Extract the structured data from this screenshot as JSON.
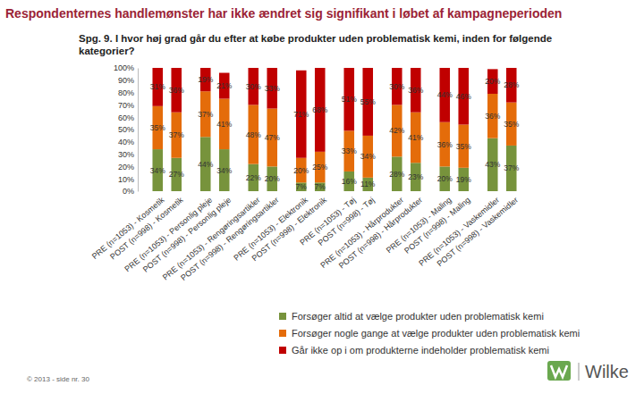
{
  "chart_data": {
    "type": "bar",
    "stacked": true,
    "data_labels": true,
    "grid": false,
    "legend": "bottom",
    "title": "Respondenternes  handlemønster har ikke ændret sig signifikant i løbet af kampagneperioden",
    "subtitle": [
      "Spg. 9. I hvor høj grad går du efter at købe produkter uden problematisk kemi, inden for følgende",
      "kategorier?"
    ],
    "footer": "© 2013 - side nr. 30",
    "brand": "Wilke",
    "categories": [
      "PRE (n=1053) - Kosmetik",
      "POST (n=998) - Kosmetik",
      "PRE (n=1053) - Personlig pleje",
      "POST (n=998) - Personlig pleje",
      "PRE (n=1053) - Rengøringsartikler",
      "POST (n=998) - Rengøringsartikler",
      "PRE (n=1053) - Elektronik",
      "POST (n=998) - Elektronik",
      "PRE (n=1053) - Tøj",
      "POST (n=998) - Tøj",
      "PRE (n=1053) - Hårprodukter",
      "POST (n=998) - Hårprodukter",
      "PRE (n=1053) - Maling",
      "POST (n=998) - Maling",
      "PRE (n=1053) - Vaskemidler",
      "POST (n=998) - Vaskemidler"
    ],
    "series": [
      {
        "name": "Forsøger altid at vælge produkter uden problematisk kemi",
        "color": "#77933c",
        "values": [
          34,
          27,
          44,
          34,
          22,
          20,
          7,
          7,
          16,
          11,
          28,
          23,
          20,
          19,
          43,
          37
        ],
        "value_labels": [
          "34%",
          "27%",
          "44%",
          "34%",
          "22%",
          "20%",
          "7%",
          "7%",
          "16%",
          "11%",
          "28%",
          "23%",
          "20%",
          "19%",
          "43%",
          "37%"
        ]
      },
      {
        "name": "Forsøger nogle gange at vælge produkter uden problematisk kemi",
        "color": "#e46c0a",
        "values": [
          35,
          37,
          37,
          41,
          48,
          47,
          20,
          25,
          33,
          34,
          42,
          41,
          36,
          35,
          36,
          35
        ],
        "value_labels": [
          "35%",
          "37%",
          "37%",
          "41%",
          "48%",
          "47%",
          "20%",
          "25%",
          "33%",
          "34%",
          "42%",
          "41%",
          "36%",
          "35%",
          "36%",
          "35%"
        ]
      },
      {
        "name": "Går ikke op i om produkterne indeholder problematisk kemi",
        "color": "#c00000",
        "values": [
          31,
          36,
          19,
          21,
          30,
          33,
          71,
          68,
          51,
          55,
          30,
          36,
          44,
          46,
          20,
          28
        ],
        "value_labels": [
          "31%",
          "36%",
          "19%",
          "21%",
          "30%",
          "33%",
          "71%",
          "68%",
          "51%",
          "55%",
          "30%",
          "36%",
          "44%",
          "46%",
          "20%",
          "28%"
        ]
      }
    ],
    "ylim": [
      0,
      100
    ],
    "yticks": [
      {
        "value": 0,
        "label": "0%"
      },
      {
        "value": 10,
        "label": "10%"
      },
      {
        "value": 20,
        "label": "20%"
      },
      {
        "value": 30,
        "label": "30%"
      },
      {
        "value": 40,
        "label": "40%"
      },
      {
        "value": 50,
        "label": "50%"
      },
      {
        "value": 60,
        "label": "60%"
      },
      {
        "value": 70,
        "label": "70%"
      },
      {
        "value": 80,
        "label": "80%"
      },
      {
        "value": 90,
        "label": "90%"
      },
      {
        "value": 100,
        "label": "100%"
      }
    ]
  }
}
